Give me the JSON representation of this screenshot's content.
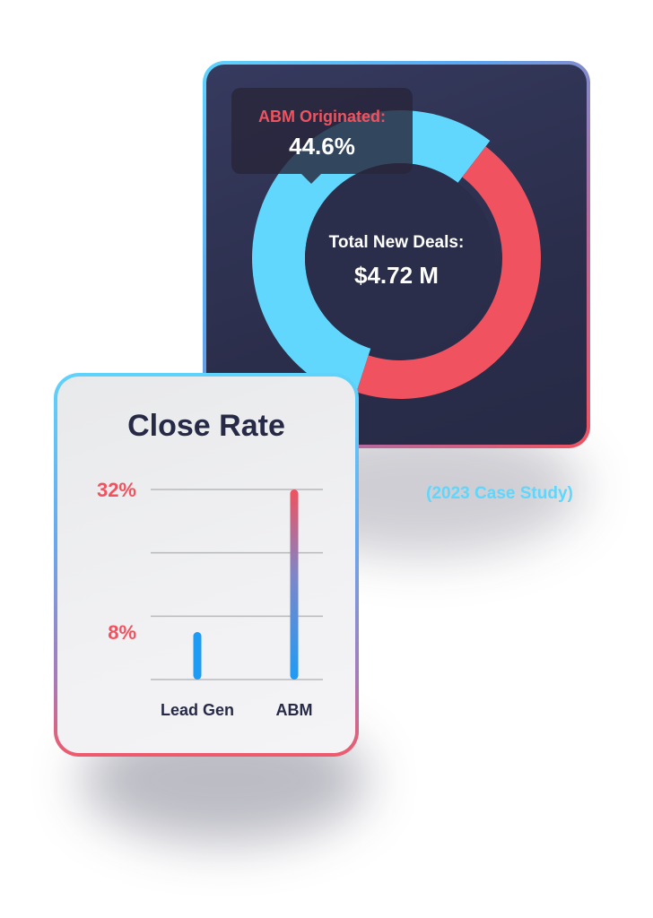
{
  "donut": {
    "tooltip_label": "ABM Originated:",
    "tooltip_value": "44.6%",
    "center_label": "Total New Deals:",
    "center_value": "$4.72 M",
    "colors": {
      "highlight": "#f0525f",
      "rest": "#62d7fd",
      "card": "#2b2e4b"
    }
  },
  "caption": "(2023 Case Study)",
  "close_rate": {
    "title": "Close Rate"
  },
  "chart_data": [
    {
      "type": "pie",
      "labels": [
        "ABM Originated",
        ""
      ],
      "values": [
        44.6,
        55.4
      ],
      "colors": [
        "#f0525f",
        "#62d7fd"
      ],
      "annotation": "ABM Originated: 44.6%",
      "center_text": "Total New Deals: $4.72 M"
    },
    {
      "type": "bar",
      "title": "Close Rate",
      "categories": [
        "Lead Gen",
        "ABM"
      ],
      "values": [
        8,
        32
      ],
      "tick_labels": [
        "32%",
        "8%"
      ],
      "tick_values": [
        32,
        8
      ],
      "ylim": [
        0,
        32
      ],
      "grid": true,
      "colors": {
        "bar": "#1e9bf5",
        "bar_top": "#f0525f",
        "tick_text": "#f0525f",
        "category_text": "#262a46",
        "grid": "#b8b9bd"
      }
    }
  ]
}
